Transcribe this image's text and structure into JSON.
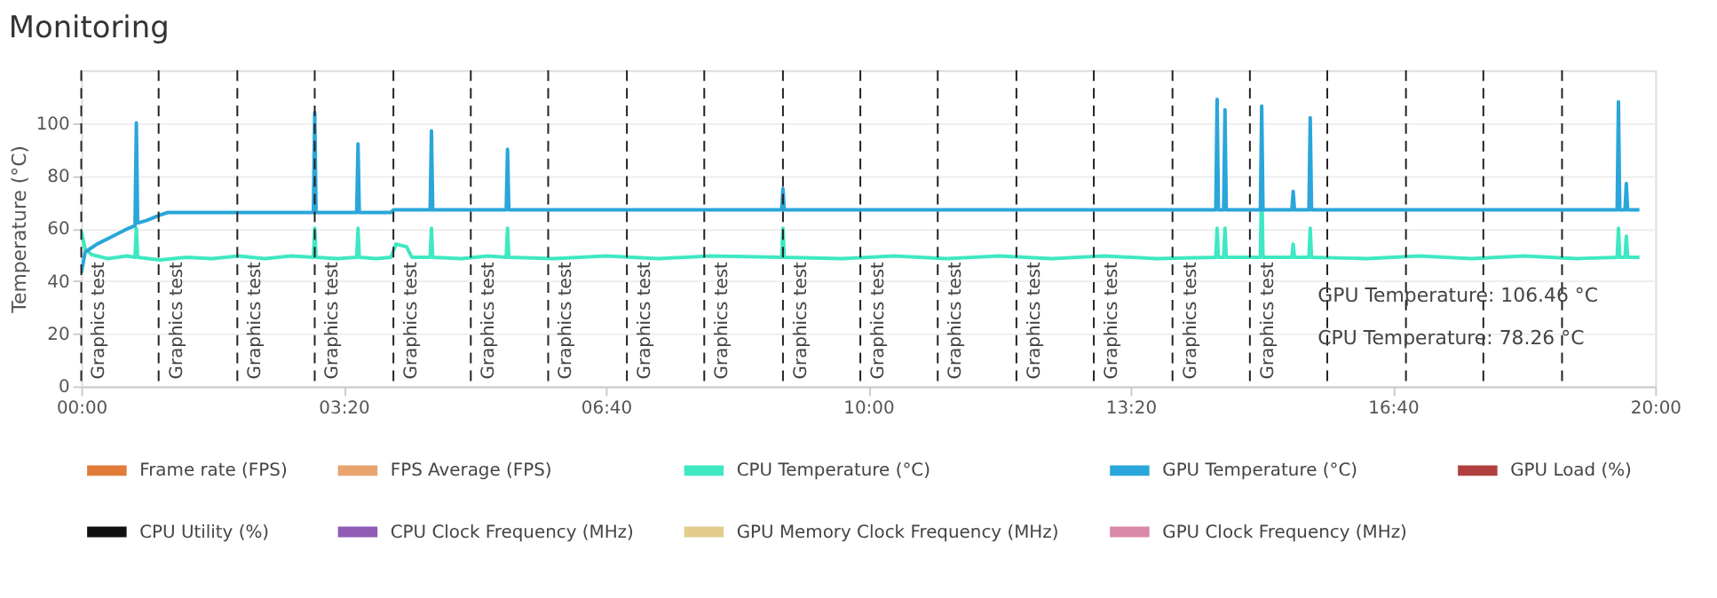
{
  "chart_data": {
    "type": "line",
    "title": "Monitoring",
    "ylabel": "Temperature (°C)",
    "xlim": [
      0,
      1200
    ],
    "ylim": [
      0,
      120
    ],
    "xticks": [
      {
        "value": 0,
        "label": "00:00"
      },
      {
        "value": 200,
        "label": "03:20"
      },
      {
        "value": 400,
        "label": "06:40"
      },
      {
        "value": 600,
        "label": "10:00"
      },
      {
        "value": 800,
        "label": "13:20"
      },
      {
        "value": 1000,
        "label": "16:40"
      },
      {
        "value": 1200,
        "label": "20:00"
      }
    ],
    "yticks": [
      0,
      20,
      40,
      60,
      80,
      100
    ],
    "grid": "y",
    "legend": "bottom",
    "marker": "none",
    "line_style": "solid",
    "series": [
      {
        "name": "Frame rate (FPS)",
        "color": "#e07b39"
      },
      {
        "name": "FPS Average (FPS)",
        "color": "#e8a36f"
      },
      {
        "name": "CPU Temperature (°C)",
        "color": "#3ee8c2",
        "x": [
          0,
          3,
          8,
          20,
          35,
          41,
          42,
          43,
          60,
          80,
          100,
          120,
          140,
          160,
          177,
          178,
          179,
          195,
          210,
          211,
          212,
          225,
          236,
          240,
          248,
          252,
          266,
          267,
          268,
          290,
          310,
          324,
          325,
          326,
          360,
          400,
          440,
          480,
          534,
          535,
          536,
          580,
          620,
          660,
          700,
          740,
          780,
          820,
          865,
          866,
          867,
          871,
          872,
          873,
          899,
          900,
          901,
          923,
          924,
          925,
          936,
          937,
          938,
          980,
          1020,
          1060,
          1100,
          1140,
          1171,
          1172,
          1173,
          1177,
          1178,
          1179,
          1188
        ],
        "values": [
          59,
          52,
          50,
          48.5,
          49.5,
          49,
          60,
          49,
          48,
          49,
          48.5,
          49.5,
          48.5,
          49.5,
          49,
          60,
          49,
          48.5,
          49,
          60,
          49,
          48.5,
          49,
          54,
          53,
          49,
          49,
          60,
          49,
          48.5,
          49.5,
          49,
          60,
          49,
          48.5,
          49.5,
          48.5,
          49.5,
          49,
          60,
          49,
          48.5,
          49.5,
          48.5,
          49.5,
          48.5,
          49.5,
          48.5,
          49,
          60,
          49,
          49,
          60,
          49,
          49,
          78.26,
          49,
          49,
          54,
          49,
          49,
          60,
          49,
          48.5,
          49.5,
          48.5,
          49.5,
          48.5,
          49,
          60,
          49,
          49,
          57,
          49,
          49
        ]
      },
      {
        "name": "GPU Temperature (°C)",
        "color": "#2aa6da",
        "x": [
          0,
          3,
          12,
          24,
          36,
          41,
          42,
          43,
          50,
          60,
          66,
          177,
          178,
          179,
          210,
          211,
          212,
          236,
          238,
          266,
          267,
          268,
          324,
          325,
          326,
          534,
          535,
          536,
          865,
          866,
          867,
          871,
          872,
          873,
          899,
          900,
          901,
          923,
          924,
          925,
          936,
          937,
          938,
          1171,
          1172,
          1173,
          1177,
          1178,
          1179,
          1188
        ],
        "values": [
          43,
          51,
          54,
          57,
          60,
          61,
          100,
          62,
          63,
          65,
          66,
          66,
          104,
          66,
          66,
          92,
          66,
          66,
          67,
          67,
          97,
          67,
          67,
          90,
          67,
          67,
          75,
          67,
          67,
          109,
          67,
          67,
          105,
          67,
          67,
          106.46,
          67,
          67,
          74,
          67,
          67,
          102,
          67,
          67,
          108,
          67,
          67,
          77,
          67,
          67
        ]
      },
      {
        "name": "GPU Load (%)",
        "color": "#b0403f"
      },
      {
        "name": "CPU Utility (%)",
        "color": "#111111"
      },
      {
        "name": "CPU Clock Frequency (MHz)",
        "color": "#8e5bb5"
      },
      {
        "name": "GPU Memory Clock Frequency (MHz)",
        "color": "#e3cc8c"
      },
      {
        "name": "GPU Clock Frequency (MHz)",
        "color": "#d988a8"
      }
    ],
    "ref_lines": [
      {
        "axis": "x",
        "value": 0,
        "label": "Graphics test",
        "line_style": "dashed",
        "color": "#222222"
      },
      {
        "axis": "x",
        "value": 59,
        "label": "Graphics test",
        "line_style": "dashed",
        "color": "#222222"
      },
      {
        "axis": "x",
        "value": 119,
        "label": "Graphics test",
        "line_style": "dashed",
        "color": "#222222"
      },
      {
        "axis": "x",
        "value": 178,
        "label": "Graphics test",
        "line_style": "dashed",
        "color": "#222222"
      },
      {
        "axis": "x",
        "value": 238,
        "label": "Graphics test",
        "line_style": "dashed",
        "color": "#222222"
      },
      {
        "axis": "x",
        "value": 297,
        "label": "Graphics test",
        "line_style": "dashed",
        "color": "#222222"
      },
      {
        "axis": "x",
        "value": 356,
        "label": "Graphics test",
        "line_style": "dashed",
        "color": "#222222"
      },
      {
        "axis": "x",
        "value": 416,
        "label": "Graphics test",
        "line_style": "dashed",
        "color": "#222222"
      },
      {
        "axis": "x",
        "value": 475,
        "label": "Graphics test",
        "line_style": "dashed",
        "color": "#222222"
      },
      {
        "axis": "x",
        "value": 535,
        "label": "Graphics test",
        "line_style": "dashed",
        "color": "#222222"
      },
      {
        "axis": "x",
        "value": 594,
        "label": "Graphics test",
        "line_style": "dashed",
        "color": "#222222"
      },
      {
        "axis": "x",
        "value": 653,
        "label": "Graphics test",
        "line_style": "dashed",
        "color": "#222222"
      },
      {
        "axis": "x",
        "value": 713,
        "label": "Graphics test",
        "line_style": "dashed",
        "color": "#222222"
      },
      {
        "axis": "x",
        "value": 772,
        "label": "Graphics test",
        "line_style": "dashed",
        "color": "#222222"
      },
      {
        "axis": "x",
        "value": 832,
        "label": "Graphics test",
        "line_style": "dashed",
        "color": "#222222"
      },
      {
        "axis": "x",
        "value": 891,
        "label": "Graphics test",
        "line_style": "dashed",
        "color": "#222222"
      },
      {
        "axis": "x",
        "value": 950,
        "label": null,
        "line_style": "dashed",
        "color": "#222222"
      },
      {
        "axis": "x",
        "value": 1010,
        "label": null,
        "line_style": "dashed",
        "color": "#222222"
      },
      {
        "axis": "x",
        "value": 1069,
        "label": null,
        "line_style": "dashed",
        "color": "#222222"
      },
      {
        "axis": "x",
        "value": 1129,
        "label": null,
        "line_style": "dashed",
        "color": "#222222"
      }
    ],
    "annotations": [
      "GPU Temperature: 106.46 °C",
      "CPU Temperature: 78.26 °C"
    ]
  }
}
